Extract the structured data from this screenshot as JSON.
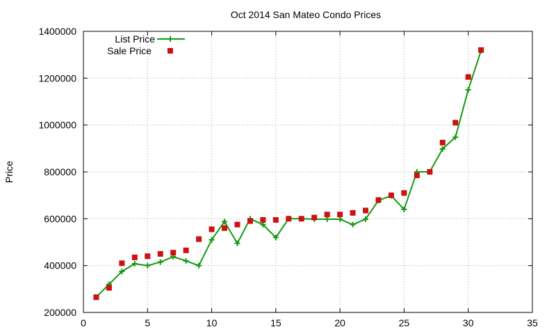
{
  "chart_data": {
    "type": "line",
    "title": "Oct 2014 San Mateo Condo Prices",
    "xlabel": "",
    "ylabel": "Price",
    "xlim": [
      0,
      35
    ],
    "ylim": [
      200000,
      1400000
    ],
    "xticks": [
      "0",
      "5",
      "10",
      "15",
      "20",
      "25",
      "30",
      "35"
    ],
    "yticks": [
      "200000",
      "400000",
      "600000",
      "800000",
      "1000000",
      "1200000",
      "1400000"
    ],
    "grid": true,
    "legend_position": "top-left",
    "x": [
      1,
      2,
      3,
      4,
      5,
      6,
      7,
      8,
      9,
      10,
      11,
      12,
      13,
      14,
      15,
      16,
      17,
      18,
      19,
      20,
      21,
      22,
      23,
      24,
      25,
      26,
      27,
      28,
      29,
      30,
      31
    ],
    "series": [
      {
        "name": "List Price",
        "style": "line-with-plus-markers",
        "color": "#119911",
        "values": [
          265000,
          320000,
          375000,
          408000,
          400000,
          415000,
          438000,
          420000,
          400000,
          510000,
          588000,
          495000,
          600000,
          575000,
          520000,
          600000,
          600000,
          598000,
          598000,
          598000,
          575000,
          598000,
          678000,
          698000,
          640000,
          800000,
          800000,
          898000,
          948000,
          1150000,
          1318000
        ]
      },
      {
        "name": "Sale Price",
        "style": "square-markers",
        "color": "#cc1111",
        "values": [
          265000,
          305000,
          410000,
          435000,
          440000,
          450000,
          455000,
          465000,
          513000,
          555000,
          560000,
          575000,
          590000,
          595000,
          595000,
          600000,
          600000,
          605000,
          618000,
          618000,
          625000,
          635000,
          680000,
          700000,
          710000,
          785000,
          800000,
          925000,
          1010000,
          1205000,
          1320000
        ]
      }
    ]
  }
}
